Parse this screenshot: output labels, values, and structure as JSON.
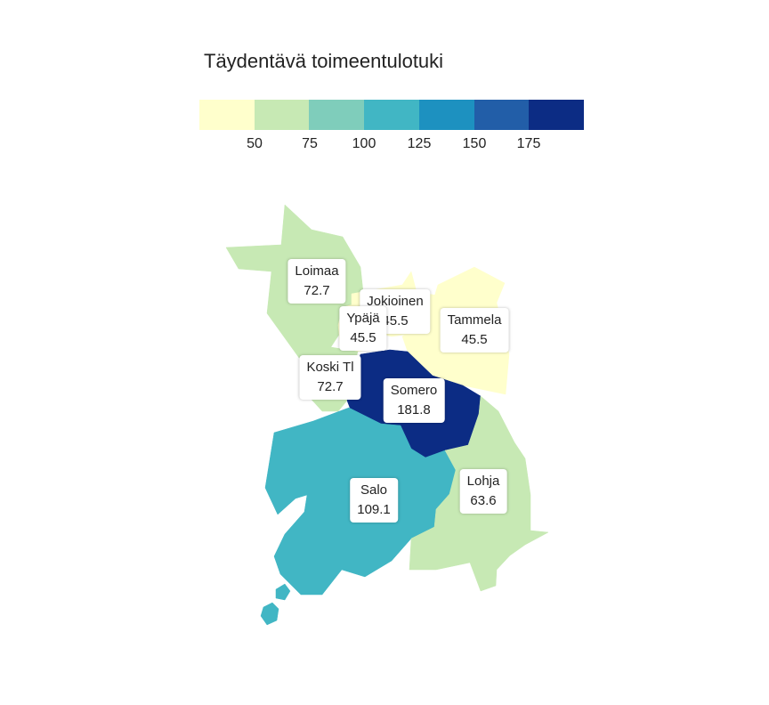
{
  "legend": {
    "title": "Täydentävä toimeentulotuki",
    "colors": [
      "#ffffcc",
      "#c7e9b4",
      "#7fcdbb",
      "#41b6c4",
      "#1d91c0",
      "#225ea8",
      "#0c2c84"
    ],
    "ticks": [
      "50",
      "75",
      "100",
      "125",
      "150",
      "175"
    ]
  },
  "regions": [
    {
      "name": "Loimaa",
      "value": "72.7",
      "color": "#c7e9b4"
    },
    {
      "name": "Jokioinen",
      "value": "45.5",
      "color": "#ffffcc"
    },
    {
      "name": "Ypäjä",
      "value": "45.5",
      "color": "#ffffcc"
    },
    {
      "name": "Tammela",
      "value": "45.5",
      "color": "#ffffcc"
    },
    {
      "name": "Koski Tl",
      "value": "72.7",
      "color": "#c7e9b4"
    },
    {
      "name": "Somero",
      "value": "181.8",
      "color": "#0c2c84"
    },
    {
      "name": "Salo",
      "value": "109.1",
      "color": "#41b6c4"
    },
    {
      "name": "Lohja",
      "value": "63.6",
      "color": "#c7e9b4"
    }
  ]
}
